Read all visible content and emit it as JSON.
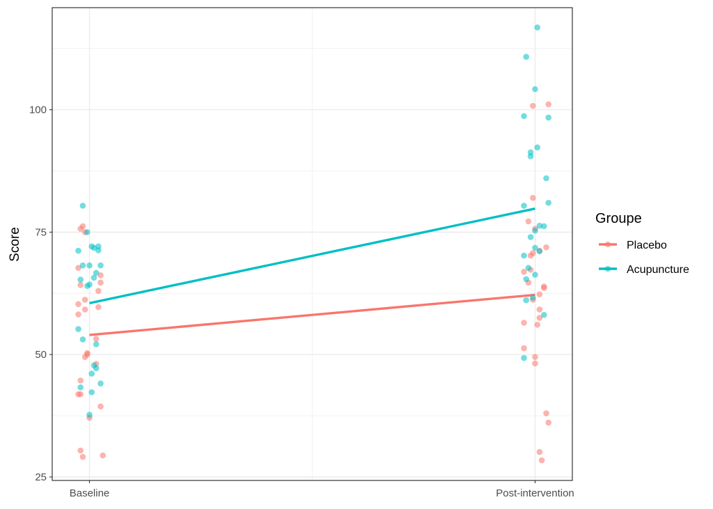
{
  "chart_data": {
    "type": "scatter",
    "title": "",
    "xlabel": "",
    "ylabel": "Score",
    "categories": [
      "Baseline",
      "Post-intervention"
    ],
    "ylim": [
      25,
      118
    ],
    "yticks": [
      25,
      50,
      75,
      100
    ],
    "grid": true,
    "legend": {
      "title": "Groupe",
      "position": "right"
    },
    "series": [
      {
        "name": "Placebo",
        "color": "#F8766D",
        "trend": [
          54.0,
          62.2
        ],
        "points": [
          {
            "x": "Baseline",
            "jitter": -0.03,
            "y": 76.2
          },
          {
            "x": "Baseline",
            "jitter": -0.04,
            "y": 75.7
          },
          {
            "x": "Baseline",
            "jitter": -0.02,
            "y": 75.0
          },
          {
            "x": "Baseline",
            "jitter": -0.05,
            "y": 67.7
          },
          {
            "x": "Baseline",
            "jitter": 0.05,
            "y": 66.2
          },
          {
            "x": "Baseline",
            "jitter": 0.05,
            "y": 64.7
          },
          {
            "x": "Baseline",
            "jitter": -0.04,
            "y": 64.2
          },
          {
            "x": "Baseline",
            "jitter": 0.04,
            "y": 63.0
          },
          {
            "x": "Baseline",
            "jitter": -0.02,
            "y": 61.2
          },
          {
            "x": "Baseline",
            "jitter": -0.05,
            "y": 60.3
          },
          {
            "x": "Baseline",
            "jitter": 0.04,
            "y": 59.7
          },
          {
            "x": "Baseline",
            "jitter": -0.02,
            "y": 59.2
          },
          {
            "x": "Baseline",
            "jitter": -0.05,
            "y": 58.2
          },
          {
            "x": "Baseline",
            "jitter": 0.03,
            "y": 53.2
          },
          {
            "x": "Baseline",
            "jitter": -0.01,
            "y": 50.3
          },
          {
            "x": "Baseline",
            "jitter": -0.01,
            "y": 50.0
          },
          {
            "x": "Baseline",
            "jitter": -0.02,
            "y": 49.5
          },
          {
            "x": "Baseline",
            "jitter": 0.03,
            "y": 48.1
          },
          {
            "x": "Baseline",
            "jitter": -0.04,
            "y": 44.7
          },
          {
            "x": "Baseline",
            "jitter": -0.05,
            "y": 41.9
          },
          {
            "x": "Baseline",
            "jitter": -0.04,
            "y": 41.9
          },
          {
            "x": "Baseline",
            "jitter": 0.05,
            "y": 39.4
          },
          {
            "x": "Baseline",
            "jitter": 0.0,
            "y": 37.1
          },
          {
            "x": "Baseline",
            "jitter": -0.04,
            "y": 30.4
          },
          {
            "x": "Baseline",
            "jitter": -0.03,
            "y": 29.1
          },
          {
            "x": "Baseline",
            "jitter": 0.06,
            "y": 29.4
          },
          {
            "x": "Post-intervention",
            "jitter": -0.01,
            "y": 100.8
          },
          {
            "x": "Post-intervention",
            "jitter": 0.06,
            "y": 101.1
          },
          {
            "x": "Post-intervention",
            "jitter": -0.01,
            "y": 82.0
          },
          {
            "x": "Post-intervention",
            "jitter": -0.03,
            "y": 77.2
          },
          {
            "x": "Post-intervention",
            "jitter": 0.0,
            "y": 75.7
          },
          {
            "x": "Post-intervention",
            "jitter": 0.05,
            "y": 71.9
          },
          {
            "x": "Post-intervention",
            "jitter": 0.02,
            "y": 71.2
          },
          {
            "x": "Post-intervention",
            "jitter": -0.01,
            "y": 70.7
          },
          {
            "x": "Post-intervention",
            "jitter": -0.02,
            "y": 70.2
          },
          {
            "x": "Post-intervention",
            "jitter": -0.02,
            "y": 67.3
          },
          {
            "x": "Post-intervention",
            "jitter": -0.05,
            "y": 66.9
          },
          {
            "x": "Post-intervention",
            "jitter": -0.03,
            "y": 64.7
          },
          {
            "x": "Post-intervention",
            "jitter": 0.04,
            "y": 63.9
          },
          {
            "x": "Post-intervention",
            "jitter": 0.04,
            "y": 63.6
          },
          {
            "x": "Post-intervention",
            "jitter": 0.02,
            "y": 62.3
          },
          {
            "x": "Post-intervention",
            "jitter": -0.01,
            "y": 61.2
          },
          {
            "x": "Post-intervention",
            "jitter": 0.02,
            "y": 59.2
          },
          {
            "x": "Post-intervention",
            "jitter": 0.02,
            "y": 57.5
          },
          {
            "x": "Post-intervention",
            "jitter": -0.05,
            "y": 56.5
          },
          {
            "x": "Post-intervention",
            "jitter": 0.01,
            "y": 56.1
          },
          {
            "x": "Post-intervention",
            "jitter": -0.05,
            "y": 51.3
          },
          {
            "x": "Post-intervention",
            "jitter": 0.0,
            "y": 49.5
          },
          {
            "x": "Post-intervention",
            "jitter": 0.0,
            "y": 48.2
          },
          {
            "x": "Post-intervention",
            "jitter": 0.05,
            "y": 38.0
          },
          {
            "x": "Post-intervention",
            "jitter": 0.06,
            "y": 36.1
          },
          {
            "x": "Post-intervention",
            "jitter": 0.02,
            "y": 30.1
          },
          {
            "x": "Post-intervention",
            "jitter": 0.03,
            "y": 28.4
          }
        ]
      },
      {
        "name": "Acupuncture",
        "color": "#00BFC4",
        "trend": [
          60.5,
          79.8
        ],
        "points": [
          {
            "x": "Baseline",
            "jitter": -0.03,
            "y": 80.4
          },
          {
            "x": "Baseline",
            "jitter": -0.01,
            "y": 75.0
          },
          {
            "x": "Baseline",
            "jitter": 0.01,
            "y": 72.1
          },
          {
            "x": "Baseline",
            "jitter": 0.04,
            "y": 72.1
          },
          {
            "x": "Baseline",
            "jitter": 0.02,
            "y": 71.8
          },
          {
            "x": "Baseline",
            "jitter": 0.04,
            "y": 71.3
          },
          {
            "x": "Baseline",
            "jitter": -0.05,
            "y": 71.2
          },
          {
            "x": "Baseline",
            "jitter": -0.03,
            "y": 68.2
          },
          {
            "x": "Baseline",
            "jitter": 0.0,
            "y": 68.2
          },
          {
            "x": "Baseline",
            "jitter": 0.05,
            "y": 68.2
          },
          {
            "x": "Baseline",
            "jitter": 0.03,
            "y": 66.7
          },
          {
            "x": "Baseline",
            "jitter": 0.02,
            "y": 65.7
          },
          {
            "x": "Baseline",
            "jitter": -0.04,
            "y": 65.3
          },
          {
            "x": "Baseline",
            "jitter": 0.0,
            "y": 64.3
          },
          {
            "x": "Baseline",
            "jitter": -0.01,
            "y": 64.0
          },
          {
            "x": "Baseline",
            "jitter": -0.05,
            "y": 55.2
          },
          {
            "x": "Baseline",
            "jitter": -0.03,
            "y": 53.1
          },
          {
            "x": "Baseline",
            "jitter": 0.03,
            "y": 52.1
          },
          {
            "x": "Baseline",
            "jitter": 0.02,
            "y": 47.8
          },
          {
            "x": "Baseline",
            "jitter": 0.03,
            "y": 47.2
          },
          {
            "x": "Baseline",
            "jitter": 0.01,
            "y": 46.1
          },
          {
            "x": "Baseline",
            "jitter": 0.05,
            "y": 44.1
          },
          {
            "x": "Baseline",
            "jitter": -0.04,
            "y": 43.3
          },
          {
            "x": "Baseline",
            "jitter": 0.01,
            "y": 42.3
          },
          {
            "x": "Baseline",
            "jitter": 0.0,
            "y": 37.7
          },
          {
            "x": "Post-intervention",
            "jitter": 0.01,
            "y": 116.8
          },
          {
            "x": "Post-intervention",
            "jitter": -0.04,
            "y": 110.8
          },
          {
            "x": "Post-intervention",
            "jitter": 0.0,
            "y": 104.2
          },
          {
            "x": "Post-intervention",
            "jitter": -0.05,
            "y": 98.7
          },
          {
            "x": "Post-intervention",
            "jitter": 0.06,
            "y": 98.4
          },
          {
            "x": "Post-intervention",
            "jitter": 0.01,
            "y": 92.3
          },
          {
            "x": "Post-intervention",
            "jitter": -0.02,
            "y": 91.3
          },
          {
            "x": "Post-intervention",
            "jitter": -0.02,
            "y": 90.5
          },
          {
            "x": "Post-intervention",
            "jitter": 0.05,
            "y": 86.0
          },
          {
            "x": "Post-intervention",
            "jitter": 0.06,
            "y": 81.0
          },
          {
            "x": "Post-intervention",
            "jitter": -0.05,
            "y": 80.4
          },
          {
            "x": "Post-intervention",
            "jitter": 0.02,
            "y": 76.3
          },
          {
            "x": "Post-intervention",
            "jitter": 0.04,
            "y": 76.2
          },
          {
            "x": "Post-intervention",
            "jitter": 0.0,
            "y": 75.3
          },
          {
            "x": "Post-intervention",
            "jitter": -0.02,
            "y": 74.0
          },
          {
            "x": "Post-intervention",
            "jitter": 0.0,
            "y": 71.8
          },
          {
            "x": "Post-intervention",
            "jitter": 0.02,
            "y": 71.1
          },
          {
            "x": "Post-intervention",
            "jitter": -0.05,
            "y": 70.2
          },
          {
            "x": "Post-intervention",
            "jitter": -0.03,
            "y": 67.7
          },
          {
            "x": "Post-intervention",
            "jitter": 0.0,
            "y": 66.3
          },
          {
            "x": "Post-intervention",
            "jitter": -0.04,
            "y": 65.4
          },
          {
            "x": "Post-intervention",
            "jitter": -0.01,
            "y": 61.6
          },
          {
            "x": "Post-intervention",
            "jitter": -0.04,
            "y": 61.1
          },
          {
            "x": "Post-intervention",
            "jitter": 0.04,
            "y": 58.1
          },
          {
            "x": "Post-intervention",
            "jitter": -0.05,
            "y": 49.3
          }
        ]
      }
    ]
  }
}
